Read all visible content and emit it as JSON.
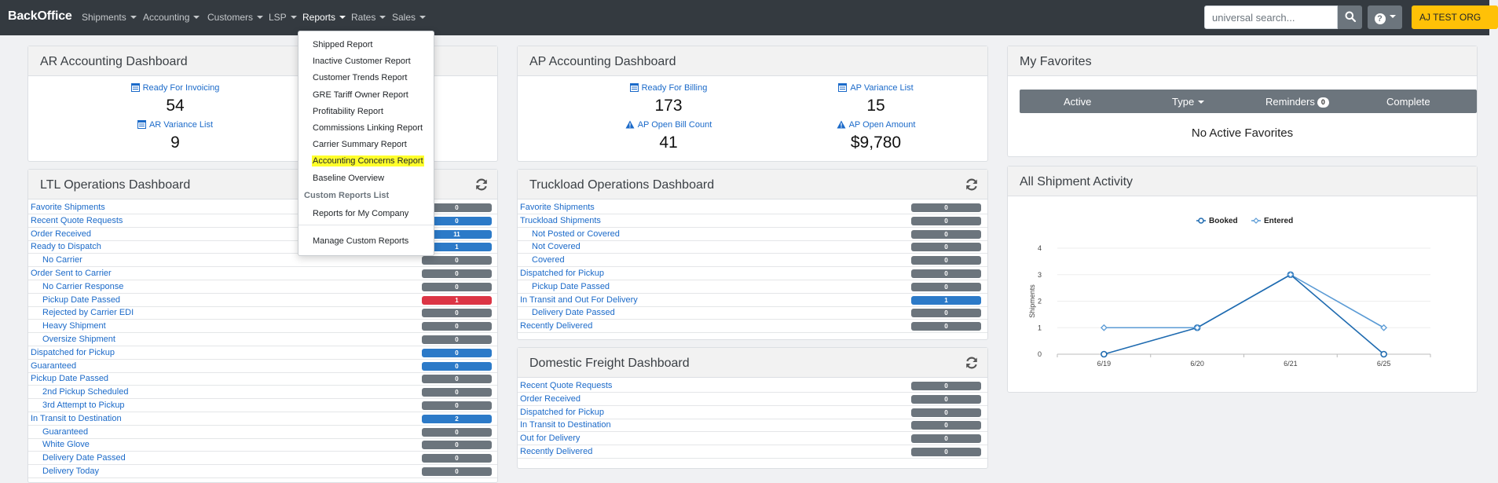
{
  "nav": {
    "brand": "BackOffice",
    "items": [
      "Shipments",
      "Accounting",
      "Customers",
      "LSP",
      "Reports",
      "Rates",
      "Sales"
    ],
    "search_placeholder": "universal search...",
    "help_label": "?",
    "org_label": "AJ TEST ORG"
  },
  "reports_menu": {
    "items": [
      "Shipped Report",
      "Inactive Customer Report",
      "Customer Trends Report",
      "GRE Tariff Owner Report",
      "Profitability Report",
      "Commissions Linking Report",
      "Carrier Summary Report",
      "Accounting Concerns Report",
      "Baseline Overview"
    ],
    "highlighted_item": "Accounting Concerns Report",
    "custom_header": "Custom Reports List",
    "custom_items": [
      "Reports for My Company"
    ],
    "manage_item": "Manage Custom Reports"
  },
  "ar": {
    "title": "AR Accounting Dashboard",
    "stats": [
      {
        "label": "Ready For Invoicing",
        "value": "54"
      },
      {
        "label": "AR Variance List",
        "value": "9"
      }
    ]
  },
  "ap": {
    "title": "AP Accounting Dashboard",
    "stats": [
      {
        "label": "Ready For Billing",
        "value": "173"
      },
      {
        "label": "AP Variance List",
        "value": "15"
      },
      {
        "label": "AP Open Bill Count",
        "value": "41"
      },
      {
        "label": "AP Open Amount",
        "value": "$9,780"
      }
    ]
  },
  "favorites": {
    "title": "My Favorites",
    "tabs": [
      "Active",
      "Type",
      "Reminders",
      "Complete"
    ],
    "reminders_count": "0",
    "empty_text": "No Active Favorites"
  },
  "ltl": {
    "title": "LTL Operations Dashboard",
    "rows": [
      {
        "label": "Favorite Shipments",
        "value": "0",
        "sub": false,
        "color": "gray"
      },
      {
        "label": "Recent Quote Requests",
        "value": "0",
        "sub": false,
        "color": "blue"
      },
      {
        "label": "Order Received",
        "value": "11",
        "sub": false,
        "color": "blue"
      },
      {
        "label": "Ready to Dispatch",
        "value": "1",
        "sub": false,
        "color": "blue"
      },
      {
        "label": "No Carrier",
        "value": "0",
        "sub": true,
        "color": "gray"
      },
      {
        "label": "Order Sent to Carrier",
        "value": "0",
        "sub": false,
        "color": "gray"
      },
      {
        "label": "No Carrier Response",
        "value": "0",
        "sub": true,
        "color": "gray"
      },
      {
        "label": "Pickup Date Passed",
        "value": "1",
        "sub": true,
        "color": "red"
      },
      {
        "label": "Rejected by Carrier EDI",
        "value": "0",
        "sub": true,
        "color": "gray"
      },
      {
        "label": "Heavy Shipment",
        "value": "0",
        "sub": true,
        "color": "gray"
      },
      {
        "label": "Oversize Shipment",
        "value": "0",
        "sub": true,
        "color": "gray"
      },
      {
        "label": "Dispatched for Pickup",
        "value": "0",
        "sub": false,
        "color": "blue"
      },
      {
        "label": "Guaranteed",
        "value": "0",
        "sub": false,
        "color": "blue"
      },
      {
        "label": "Pickup Date Passed",
        "value": "0",
        "sub": false,
        "color": "gray"
      },
      {
        "label": "2nd Pickup Scheduled",
        "value": "0",
        "sub": true,
        "color": "gray"
      },
      {
        "label": "3rd Attempt to Pickup",
        "value": "0",
        "sub": true,
        "color": "gray"
      },
      {
        "label": "In Transit to Destination",
        "value": "2",
        "sub": false,
        "color": "blue"
      },
      {
        "label": "Guaranteed",
        "value": "0",
        "sub": true,
        "color": "gray"
      },
      {
        "label": "White Glove",
        "value": "0",
        "sub": true,
        "color": "gray"
      },
      {
        "label": "Delivery Date Passed",
        "value": "0",
        "sub": true,
        "color": "gray"
      },
      {
        "label": "Delivery Today",
        "value": "0",
        "sub": true,
        "color": "gray"
      }
    ]
  },
  "truckload": {
    "title": "Truckload Operations Dashboard",
    "rows": [
      {
        "label": "Favorite Shipments",
        "value": "0",
        "sub": false,
        "color": "gray"
      },
      {
        "label": "Truckload Shipments",
        "value": "0",
        "sub": false,
        "color": "gray"
      },
      {
        "label": "Not Posted or Covered",
        "value": "0",
        "sub": true,
        "color": "gray"
      },
      {
        "label": "Not Covered",
        "value": "0",
        "sub": true,
        "color": "gray"
      },
      {
        "label": "Covered",
        "value": "0",
        "sub": true,
        "color": "gray"
      },
      {
        "label": "Dispatched for Pickup",
        "value": "0",
        "sub": false,
        "color": "gray"
      },
      {
        "label": "Pickup Date Passed",
        "value": "0",
        "sub": true,
        "color": "gray"
      },
      {
        "label": "In Transit and Out For Delivery",
        "value": "1",
        "sub": false,
        "color": "blue"
      },
      {
        "label": "Delivery Date Passed",
        "value": "0",
        "sub": true,
        "color": "gray"
      },
      {
        "label": "Recently Delivered",
        "value": "0",
        "sub": false,
        "color": "gray"
      }
    ]
  },
  "domestic": {
    "title": "Domestic Freight Dashboard",
    "rows": [
      {
        "label": "Recent Quote Requests",
        "value": "0",
        "sub": false,
        "color": "gray"
      },
      {
        "label": "Order Received",
        "value": "0",
        "sub": false,
        "color": "gray"
      },
      {
        "label": "Dispatched for Pickup",
        "value": "0",
        "sub": false,
        "color": "gray"
      },
      {
        "label": "In Transit to Destination",
        "value": "0",
        "sub": false,
        "color": "gray"
      },
      {
        "label": "Out for Delivery",
        "value": "0",
        "sub": false,
        "color": "gray"
      },
      {
        "label": "Recently Delivered",
        "value": "0",
        "sub": false,
        "color": "gray"
      }
    ]
  },
  "activity": {
    "title": "All Shipment Activity"
  },
  "colors": {
    "navbar": "#343a40",
    "link": "#1b6ac9",
    "badge_gray": "#6c757d",
    "badge_blue": "#2c7ac8",
    "badge_red": "#dc3545",
    "org_button": "#ffc107",
    "highlight": "#ffff2b",
    "series_booked": "#1f6bb0",
    "series_entered": "#5b9bd5"
  },
  "chart_data": {
    "type": "line",
    "title": "",
    "ylabel": "Shipments",
    "xlabel": "",
    "categories": [
      "6/19",
      "6/20",
      "6/21",
      "6/25"
    ],
    "ylim": [
      0,
      4
    ],
    "yticks": [
      "0",
      "1",
      "2",
      "3",
      "4"
    ],
    "legend_position": "top-center",
    "grid": true,
    "series": [
      {
        "name": "Booked",
        "values": [
          0,
          1,
          3,
          0
        ],
        "color": "#1f6bb0"
      },
      {
        "name": "Entered",
        "values": [
          1,
          1,
          3,
          1
        ],
        "color": "#5b9bd5"
      }
    ]
  }
}
